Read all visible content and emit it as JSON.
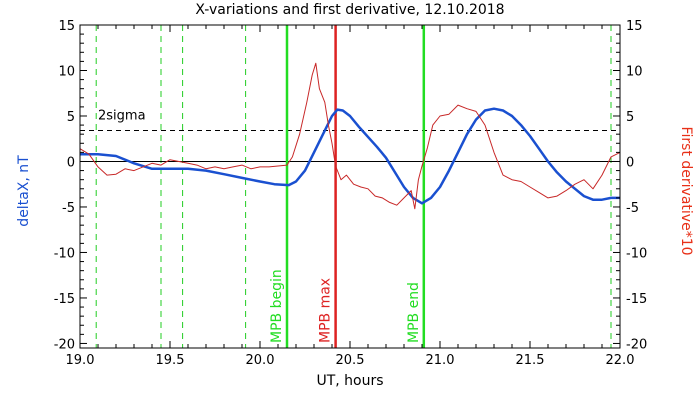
{
  "chart_data": {
    "type": "line",
    "title": "X-variations and first derivative, 12.10.2018",
    "xlabel": "UT, hours",
    "ylabel_left": "deltaX, nT",
    "ylabel_right": "First derivative*10",
    "xlim": [
      19.0,
      22.0
    ],
    "ylim": [
      -20.5,
      15
    ],
    "xticks": [
      19.0,
      19.5,
      20.0,
      20.5,
      21.0,
      21.5,
      22.0
    ],
    "xtick_labels": [
      "19.0",
      "19.5",
      "20.0",
      "20.5",
      "21.0",
      "21.5",
      "22.0"
    ],
    "yticks": [
      15,
      10,
      5,
      0,
      -5,
      -10,
      -15,
      -20
    ],
    "ytick_labels": [
      "15",
      "10",
      "5",
      "0",
      "-5",
      "-10",
      "-15",
      "-20"
    ],
    "threshold": {
      "label": "2sigma",
      "value": 3.4
    },
    "zero_line": 0,
    "series": [
      {
        "color": "#1a50d0",
        "axis": "left",
        "points": [
          [
            19.0,
            0.8
          ],
          [
            19.1,
            0.8
          ],
          [
            19.2,
            0.6
          ],
          [
            19.3,
            -0.2
          ],
          [
            19.4,
            -0.8
          ],
          [
            19.5,
            -0.8
          ],
          [
            19.6,
            -0.8
          ],
          [
            19.7,
            -1.0
          ],
          [
            19.8,
            -1.4
          ],
          [
            19.9,
            -1.8
          ],
          [
            20.0,
            -2.2
          ],
          [
            20.08,
            -2.5
          ],
          [
            20.16,
            -2.6
          ],
          [
            20.2,
            -2.2
          ],
          [
            20.25,
            -1.0
          ],
          [
            20.3,
            1.0
          ],
          [
            20.35,
            3.0
          ],
          [
            20.4,
            5.0
          ],
          [
            20.43,
            5.7
          ],
          [
            20.46,
            5.6
          ],
          [
            20.5,
            5.0
          ],
          [
            20.55,
            3.8
          ],
          [
            20.6,
            2.7
          ],
          [
            20.65,
            1.6
          ],
          [
            20.7,
            0.4
          ],
          [
            20.75,
            -1.2
          ],
          [
            20.8,
            -2.8
          ],
          [
            20.85,
            -4.0
          ],
          [
            20.9,
            -4.6
          ],
          [
            20.95,
            -4.0
          ],
          [
            21.0,
            -2.8
          ],
          [
            21.05,
            -1.0
          ],
          [
            21.1,
            1.0
          ],
          [
            21.15,
            3.0
          ],
          [
            21.2,
            4.6
          ],
          [
            21.25,
            5.6
          ],
          [
            21.3,
            5.8
          ],
          [
            21.35,
            5.6
          ],
          [
            21.4,
            5.0
          ],
          [
            21.45,
            4.0
          ],
          [
            21.5,
            2.8
          ],
          [
            21.55,
            1.4
          ],
          [
            21.6,
            0.0
          ],
          [
            21.65,
            -1.2
          ],
          [
            21.7,
            -2.2
          ],
          [
            21.75,
            -3.0
          ],
          [
            21.8,
            -3.8
          ],
          [
            21.85,
            -4.2
          ],
          [
            21.9,
            -4.2
          ],
          [
            21.95,
            -4.0
          ],
          [
            22.0,
            -4.0
          ]
        ]
      },
      {
        "color": "#c82828",
        "axis": "right",
        "points": [
          [
            19.0,
            1.4
          ],
          [
            19.05,
            0.8
          ],
          [
            19.1,
            -0.6
          ],
          [
            19.15,
            -1.5
          ],
          [
            19.2,
            -1.4
          ],
          [
            19.25,
            -0.8
          ],
          [
            19.3,
            -1.0
          ],
          [
            19.35,
            -0.6
          ],
          [
            19.4,
            -0.2
          ],
          [
            19.45,
            -0.4
          ],
          [
            19.5,
            0.2
          ],
          [
            19.55,
            0.0
          ],
          [
            19.6,
            -0.2
          ],
          [
            19.65,
            -0.4
          ],
          [
            19.7,
            -0.8
          ],
          [
            19.75,
            -0.6
          ],
          [
            19.8,
            -0.8
          ],
          [
            19.85,
            -0.6
          ],
          [
            19.9,
            -0.4
          ],
          [
            19.95,
            -0.8
          ],
          [
            20.0,
            -0.6
          ],
          [
            20.05,
            -0.6
          ],
          [
            20.1,
            -0.5
          ],
          [
            20.15,
            -0.4
          ],
          [
            20.18,
            0.5
          ],
          [
            20.22,
            3.0
          ],
          [
            20.26,
            6.5
          ],
          [
            20.29,
            9.5
          ],
          [
            20.31,
            10.8
          ],
          [
            20.33,
            8.0
          ],
          [
            20.36,
            6.5
          ],
          [
            20.38,
            4.0
          ],
          [
            20.4,
            2.0
          ],
          [
            20.42,
            -0.5
          ],
          [
            20.45,
            -2.0
          ],
          [
            20.48,
            -1.5
          ],
          [
            20.52,
            -2.5
          ],
          [
            20.56,
            -2.8
          ],
          [
            20.6,
            -3.0
          ],
          [
            20.64,
            -3.8
          ],
          [
            20.68,
            -4.0
          ],
          [
            20.72,
            -4.5
          ],
          [
            20.76,
            -4.8
          ],
          [
            20.8,
            -4.0
          ],
          [
            20.84,
            -3.2
          ],
          [
            20.86,
            -5.2
          ],
          [
            20.88,
            -2.0
          ],
          [
            20.9,
            -0.5
          ],
          [
            20.93,
            1.5
          ],
          [
            20.96,
            4.0
          ],
          [
            21.0,
            5.0
          ],
          [
            21.05,
            5.2
          ],
          [
            21.1,
            6.2
          ],
          [
            21.15,
            5.8
          ],
          [
            21.2,
            5.5
          ],
          [
            21.25,
            4.0
          ],
          [
            21.3,
            1.0
          ],
          [
            21.35,
            -1.5
          ],
          [
            21.4,
            -2.0
          ],
          [
            21.45,
            -2.2
          ],
          [
            21.5,
            -2.8
          ],
          [
            21.55,
            -3.4
          ],
          [
            21.6,
            -4.0
          ],
          [
            21.65,
            -3.8
          ],
          [
            21.7,
            -3.2
          ],
          [
            21.75,
            -2.5
          ],
          [
            21.8,
            -2.0
          ],
          [
            21.85,
            -3.0
          ],
          [
            21.9,
            -1.5
          ],
          [
            21.95,
            0.5
          ],
          [
            22.0,
            1.0
          ]
        ]
      }
    ],
    "markers": [
      {
        "label": "MPB begin",
        "x": 20.15,
        "color": "#22dd22"
      },
      {
        "label": "MPB max",
        "x": 20.42,
        "color": "#dd2222"
      },
      {
        "label": "MPB end",
        "x": 20.91,
        "color": "#22dd22"
      }
    ],
    "dashed_markers": {
      "color": "#22cc22",
      "x": [
        19.09,
        19.45,
        19.57,
        19.92,
        21.95
      ]
    }
  }
}
